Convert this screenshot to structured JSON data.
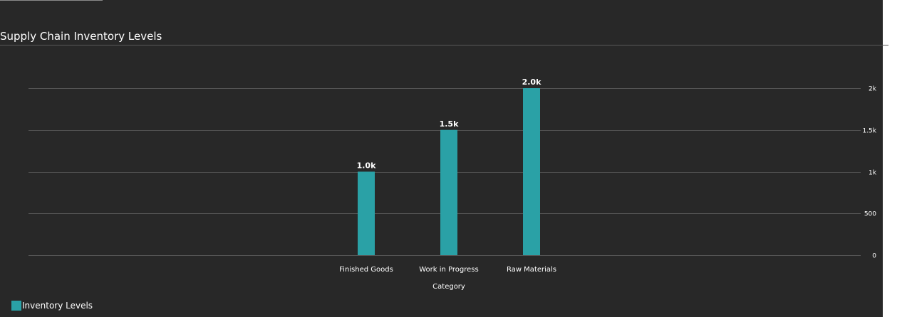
{
  "chart_data": {
    "type": "bar",
    "title": "Supply Chain Inventory Levels",
    "xlabel": "Category",
    "ylabel": "",
    "categories": [
      "Finished Goods",
      "Work in Progress",
      "Raw Materials"
    ],
    "series": [
      {
        "name": "Inventory Levels",
        "values": [
          1000,
          1500,
          2000
        ],
        "data_labels": [
          "1.0k",
          "1.5k",
          "2.0k"
        ],
        "color": "#2aa1a6"
      }
    ],
    "ylim": [
      0,
      2000
    ],
    "yticks": [
      {
        "value": 0,
        "label": "0"
      },
      {
        "value": 500,
        "label": "500"
      },
      {
        "value": 1000,
        "label": "1k"
      },
      {
        "value": 1500,
        "label": "1.5k"
      },
      {
        "value": 2000,
        "label": "2k"
      }
    ],
    "y_axis_position": "right",
    "grid": true,
    "legend_position": "bottom-left"
  },
  "colors": {
    "background": "#282828",
    "bar": "#2aa1a6",
    "grid": "#555555",
    "text": "#ffffff"
  }
}
